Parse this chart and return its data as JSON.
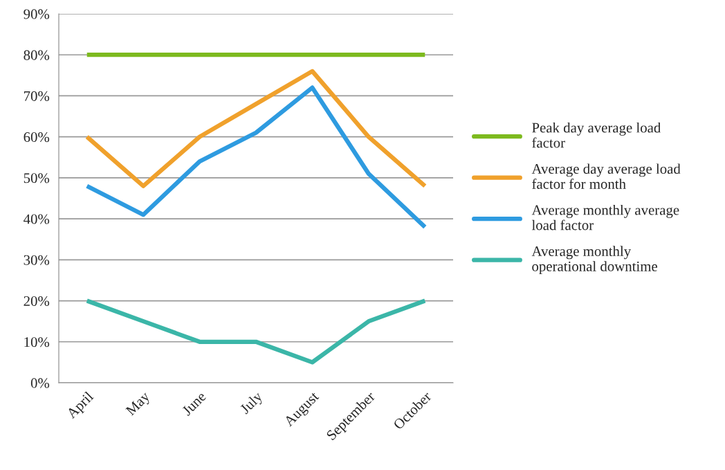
{
  "chart_data": {
    "type": "line",
    "categories": [
      "April",
      "May",
      "June",
      "July",
      "August",
      "September",
      "October"
    ],
    "series": [
      {
        "name": "Peak day average load factor",
        "color": "#7dba1e",
        "values": [
          0.8,
          0.8,
          0.8,
          0.8,
          0.8,
          0.8,
          0.8
        ]
      },
      {
        "name": "Average day average load factor for month",
        "color": "#f0a12c",
        "values": [
          0.6,
          0.48,
          0.6,
          0.68,
          0.76,
          0.6,
          0.48
        ]
      },
      {
        "name": "Average monthly average load factor",
        "color": "#2e9be0",
        "values": [
          0.48,
          0.41,
          0.54,
          0.61,
          0.72,
          0.51,
          0.38
        ]
      },
      {
        "name": "Average monthly operational downtime",
        "color": "#3bb6a8",
        "values": [
          0.2,
          0.15,
          0.1,
          0.1,
          0.05,
          0.15,
          0.2
        ]
      }
    ],
    "ylim": [
      0,
      0.9
    ],
    "yticks": [
      {
        "value": 0,
        "label": "0%"
      },
      {
        "value": 0.1,
        "label": "10%"
      },
      {
        "value": 0.2,
        "label": "20%"
      },
      {
        "value": 0.3,
        "label": "30%"
      },
      {
        "value": 0.4,
        "label": "40%"
      },
      {
        "value": 0.5,
        "label": "50%"
      },
      {
        "value": 0.6,
        "label": "60%"
      },
      {
        "value": 0.7,
        "label": "70%"
      },
      {
        "value": 0.8,
        "label": "80%"
      },
      {
        "value": 0.9,
        "label": "90%"
      }
    ],
    "grid": "y",
    "legend": "right",
    "marker": "none",
    "line_style": "solid"
  }
}
